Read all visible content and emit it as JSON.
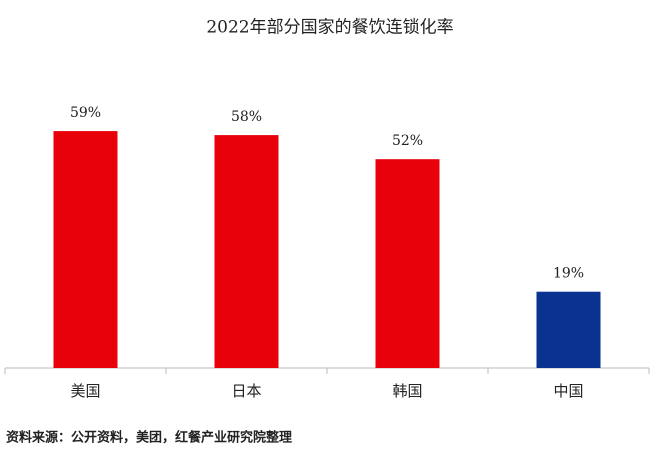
{
  "chart_data": {
    "type": "bar",
    "title": "2022年部分国家的餐饮连锁化率",
    "categories": [
      "美国",
      "日本",
      "韩国",
      "中国"
    ],
    "values": [
      59,
      58,
      52,
      19
    ],
    "value_labels": [
      "59%",
      "58%",
      "52%",
      "19%"
    ],
    "colors": [
      "#e8000b",
      "#e8000b",
      "#e8000b",
      "#0a3290"
    ],
    "ylim": [
      0,
      65
    ],
    "source": "资料来源：公开资料，美团，红餐产业研究院整理"
  }
}
